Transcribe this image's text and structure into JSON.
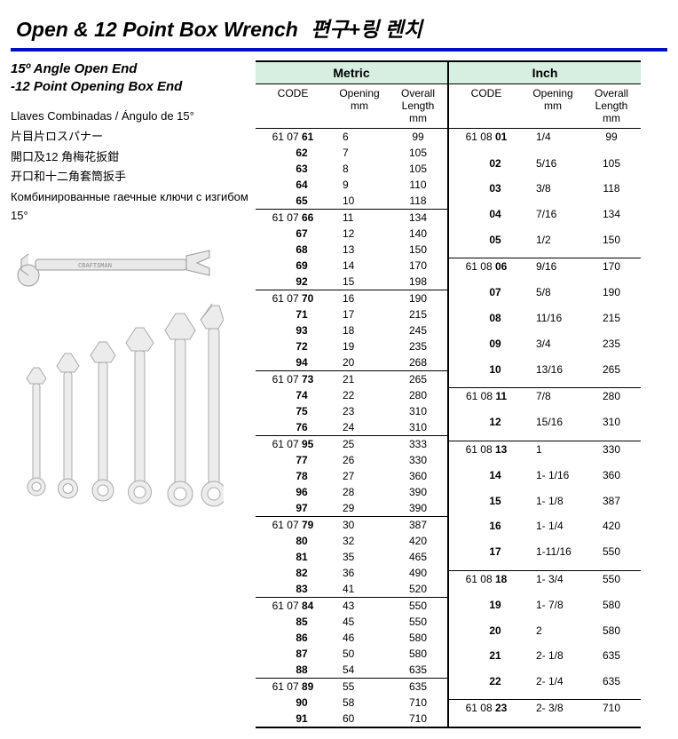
{
  "title": {
    "en": "Open & 12 Point Box Wrench",
    "kr": "편구+링 렌치"
  },
  "subtitle": {
    "line1": "15º Angle Open End",
    "line2": "-12 Point Opening Box End"
  },
  "langs": {
    "es": "Llaves Combinadas / Ángulo de 15°",
    "ja": "片目片ロスパナー",
    "zh_t": "開口及12 角梅花扳鉗",
    "zh_s": "开口和十二角套筒扳手",
    "ru": "Комбинированные гаечные ключи с изгибом 15°"
  },
  "columns": {
    "code": "CODE",
    "opening": "Opening",
    "opening_unit": "mm",
    "length": "Overall Length",
    "length_unit": "mm"
  },
  "metric": {
    "header": "Metric",
    "code_prefix": "61 07",
    "groups": [
      [
        {
          "code": "61",
          "opening": "6",
          "length": "99"
        },
        {
          "code": "62",
          "opening": "7",
          "length": "105"
        },
        {
          "code": "63",
          "opening": "8",
          "length": "105"
        },
        {
          "code": "64",
          "opening": "9",
          "length": "110"
        },
        {
          "code": "65",
          "opening": "10",
          "length": "118"
        }
      ],
      [
        {
          "code": "66",
          "opening": "11",
          "length": "134"
        },
        {
          "code": "67",
          "opening": "12",
          "length": "140"
        },
        {
          "code": "68",
          "opening": "13",
          "length": "150"
        },
        {
          "code": "69",
          "opening": "14",
          "length": "170"
        },
        {
          "code": "92",
          "opening": "15",
          "length": "198"
        }
      ],
      [
        {
          "code": "70",
          "opening": "16",
          "length": "190"
        },
        {
          "code": "71",
          "opening": "17",
          "length": "215"
        },
        {
          "code": "93",
          "opening": "18",
          "length": "245"
        },
        {
          "code": "72",
          "opening": "19",
          "length": "235"
        },
        {
          "code": "94",
          "opening": "20",
          "length": "268"
        }
      ],
      [
        {
          "code": "73",
          "opening": "21",
          "length": "265"
        },
        {
          "code": "74",
          "opening": "22",
          "length": "280"
        },
        {
          "code": "75",
          "opening": "23",
          "length": "310"
        },
        {
          "code": "76",
          "opening": "24",
          "length": "310"
        }
      ],
      [
        {
          "code": "95",
          "opening": "25",
          "length": "333"
        },
        {
          "code": "77",
          "opening": "26",
          "length": "330"
        },
        {
          "code": "78",
          "opening": "27",
          "length": "360"
        },
        {
          "code": "96",
          "opening": "28",
          "length": "390"
        },
        {
          "code": "97",
          "opening": "29",
          "length": "390"
        }
      ],
      [
        {
          "code": "79",
          "opening": "30",
          "length": "387"
        },
        {
          "code": "80",
          "opening": "32",
          "length": "420"
        },
        {
          "code": "81",
          "opening": "35",
          "length": "465"
        },
        {
          "code": "82",
          "opening": "36",
          "length": "490"
        },
        {
          "code": "83",
          "opening": "41",
          "length": "520"
        }
      ],
      [
        {
          "code": "84",
          "opening": "43",
          "length": "550"
        },
        {
          "code": "85",
          "opening": "45",
          "length": "550"
        },
        {
          "code": "86",
          "opening": "46",
          "length": "580"
        },
        {
          "code": "87",
          "opening": "50",
          "length": "580"
        },
        {
          "code": "88",
          "opening": "54",
          "length": "635"
        }
      ],
      [
        {
          "code": "89",
          "opening": "55",
          "length": "635"
        },
        {
          "code": "90",
          "opening": "58",
          "length": "710"
        },
        {
          "code": "91",
          "opening": "60",
          "length": "710"
        }
      ]
    ]
  },
  "inch": {
    "header": "Inch",
    "code_prefix": "61 08",
    "groups": [
      [
        {
          "code": "01",
          "opening": "1/4",
          "length": "99"
        },
        {
          "code": "02",
          "opening": "5/16",
          "length": "105"
        },
        {
          "code": "03",
          "opening": "3/8",
          "length": "118"
        },
        {
          "code": "04",
          "opening": "7/16",
          "length": "134"
        },
        {
          "code": "05",
          "opening": "1/2",
          "length": "150"
        }
      ],
      [
        {
          "code": "06",
          "opening": "9/16",
          "length": "170"
        },
        {
          "code": "07",
          "opening": "5/8",
          "length": "190"
        },
        {
          "code": "08",
          "opening": "11/16",
          "length": "215"
        },
        {
          "code": "09",
          "opening": "3/4",
          "length": "235"
        },
        {
          "code": "10",
          "opening": "13/16",
          "length": "265"
        }
      ],
      [
        {
          "code": "11",
          "opening": "7/8",
          "length": "280"
        },
        {
          "code": "12",
          "opening": "15/16",
          "length": "310"
        }
      ],
      [
        {
          "code": "13",
          "opening": "1",
          "length": "330"
        },
        {
          "code": "14",
          "opening": "1- 1/16",
          "length": "360"
        },
        {
          "code": "15",
          "opening": "1- 1/8",
          "length": "387"
        },
        {
          "code": "16",
          "opening": "1- 1/4",
          "length": "420"
        },
        {
          "code": "17",
          "opening": "1-11/16",
          "length": "550"
        }
      ],
      [
        {
          "code": "18",
          "opening": "1- 3/4",
          "length": "550"
        },
        {
          "code": "19",
          "opening": "1- 7/8",
          "length": "580"
        },
        {
          "code": "20",
          "opening": "2",
          "length": "580"
        },
        {
          "code": "21",
          "opening": "2- 1/8",
          "length": "635"
        },
        {
          "code": "22",
          "opening": "2- 1/4",
          "length": "635"
        }
      ],
      [
        {
          "code": "23",
          "opening": "2- 3/8",
          "length": "710"
        }
      ]
    ]
  },
  "colors": {
    "rule": "#0010c0",
    "header_bg": "#d6efe0",
    "border": "#000000"
  }
}
